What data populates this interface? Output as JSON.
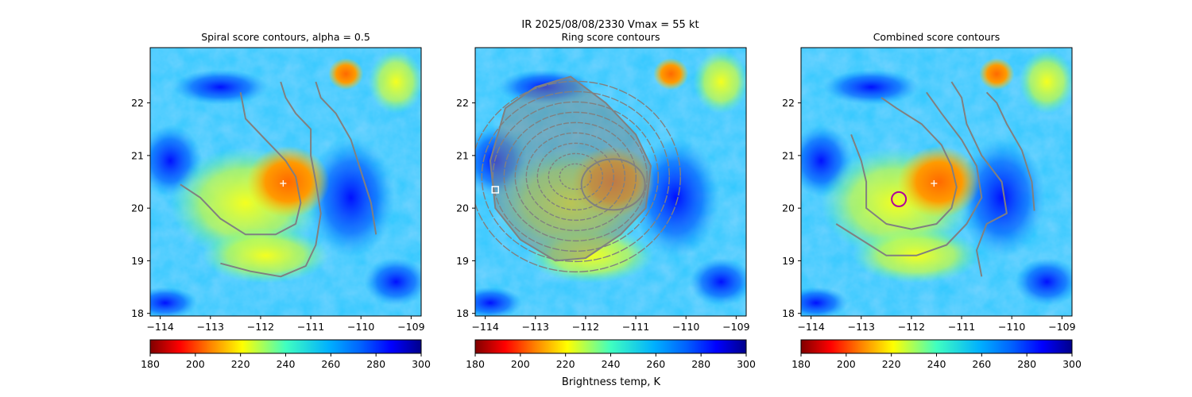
{
  "figure": {
    "suptitle_line1": "IR  2025/08/08/2330    Vmax = 55 kt",
    "colorbar_label": "Brightness temp, K"
  },
  "colors": {
    "contour": "#808080",
    "center_marker": "#ffffff",
    "ring_marker": "#b0009a",
    "square_marker": "#ffffff"
  },
  "chart_data": [
    {
      "type": "heatmap",
      "title": "Spiral score contours, alpha =  0.5",
      "x_ticks": [
        -114,
        -113,
        -112,
        -111,
        -110,
        -109
      ],
      "y_ticks": [
        18,
        19,
        20,
        21,
        22
      ],
      "xlim": [
        -114.2,
        -108.8
      ],
      "ylim": [
        17.95,
        23.05
      ],
      "center_marker": {
        "symbol": "+",
        "x": -111.55,
        "y": 20.47
      },
      "colorbar": {
        "cmap": "jet_r",
        "range": [
          180,
          300
        ],
        "ticks": [
          180,
          200,
          220,
          240,
          260,
          280,
          300
        ]
      }
    },
    {
      "type": "heatmap",
      "title": "Ring score contours",
      "x_ticks": [
        -114,
        -113,
        -112,
        -111,
        -110,
        -109
      ],
      "y_ticks": [
        18,
        19,
        20,
        21,
        22
      ],
      "xlim": [
        -114.2,
        -108.8
      ],
      "ylim": [
        17.95,
        23.05
      ],
      "square_marker": {
        "symbol": "square",
        "x": -113.8,
        "y": 20.35
      },
      "colorbar": {
        "cmap": "jet",
        "range": [
          180,
          300
        ],
        "ticks": [
          180,
          200,
          220,
          240,
          260,
          280,
          300
        ]
      }
    },
    {
      "type": "heatmap",
      "title": "Combined score contours",
      "x_ticks": [
        -114,
        -113,
        -112,
        -111,
        -110,
        -109
      ],
      "y_ticks": [
        18,
        19,
        20,
        21,
        22
      ],
      "xlim": [
        -114.2,
        -108.8
      ],
      "ylim": [
        17.95,
        23.05
      ],
      "center_marker": {
        "symbol": "+",
        "x": -111.55,
        "y": 20.47
      },
      "ring_marker": {
        "symbol": "circle",
        "x": -112.25,
        "y": 20.17
      },
      "colorbar": {
        "cmap": "jet_r",
        "range": [
          180,
          300
        ],
        "ticks": [
          180,
          200,
          220,
          240,
          260,
          280,
          300
        ]
      }
    }
  ]
}
